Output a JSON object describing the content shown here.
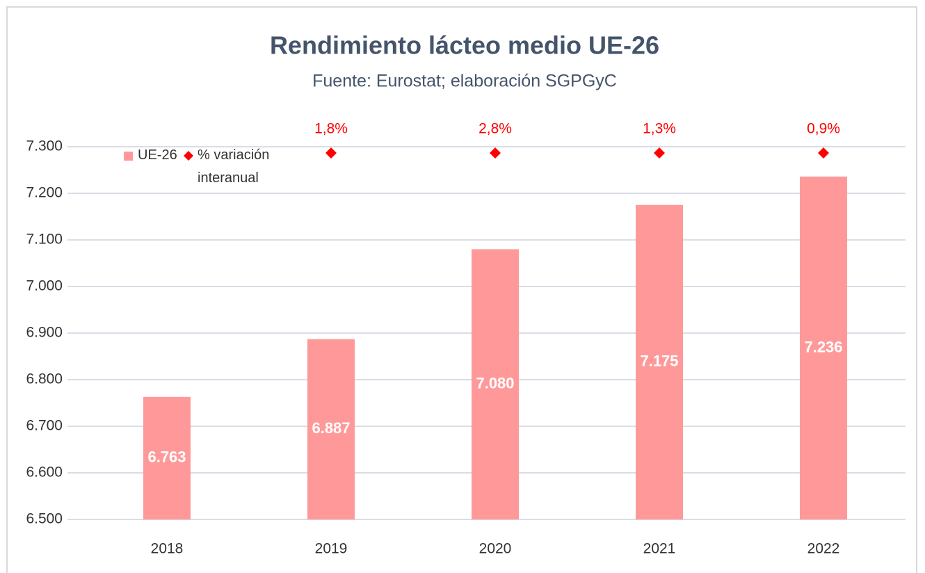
{
  "chart_data": {
    "type": "bar",
    "title": "Rendimiento lácteo medio UE-26",
    "subtitle": "Fuente: Eurostat; elaboración SGPGyC",
    "categories": [
      "2018",
      "2019",
      "2020",
      "2021",
      "2022"
    ],
    "series": [
      {
        "name": "UE-26",
        "color": "#ff9999",
        "values": [
          6763,
          6887,
          7080,
          7175,
          7236
        ],
        "value_labels": [
          "6.763",
          "6.887",
          "7.080",
          "7.175",
          "7.236"
        ]
      },
      {
        "name": "% variación interanual",
        "type": "marker",
        "color": "#ff0000",
        "values": [
          null,
          1.8,
          2.8,
          1.3,
          0.9
        ],
        "value_labels": [
          null,
          "1,8%",
          "2,8%",
          "1,3%",
          "0,9%"
        ]
      }
    ],
    "ylim": [
      6500,
      7300
    ],
    "yticks": [
      {
        "value": 6500,
        "label": "6.500"
      },
      {
        "value": 6600,
        "label": "6.600"
      },
      {
        "value": 6700,
        "label": "6.700"
      },
      {
        "value": 6800,
        "label": "6.800"
      },
      {
        "value": 6900,
        "label": "6.900"
      },
      {
        "value": 7000,
        "label": "7.000"
      },
      {
        "value": 7100,
        "label": "7.100"
      },
      {
        "value": 7200,
        "label": "7.200"
      },
      {
        "value": 7300,
        "label": "7.300"
      }
    ],
    "grid": true,
    "legend": "top-left"
  }
}
